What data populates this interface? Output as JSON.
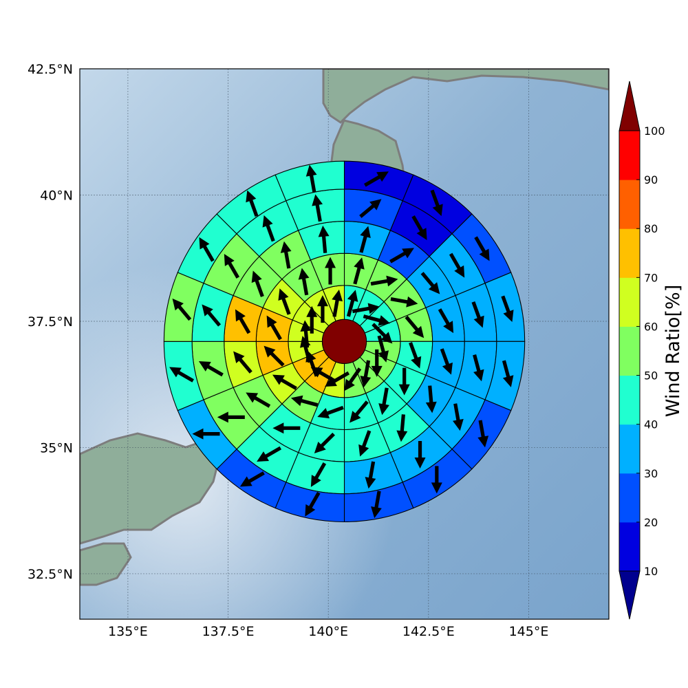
{
  "map": {
    "lon_range": [
      133.8,
      147.0
    ],
    "lat_range": [
      31.6,
      42.5
    ],
    "lon_ticks": [
      {
        "value": 135,
        "label": "135°E"
      },
      {
        "value": 137.5,
        "label": "137.5°E"
      },
      {
        "value": 140,
        "label": "140°E"
      },
      {
        "value": 142.5,
        "label": "142.5°E"
      },
      {
        "value": 145,
        "label": "145°E"
      }
    ],
    "lat_ticks": [
      {
        "value": 32.5,
        "label": "32.5°N"
      },
      {
        "value": 35,
        "label": "35°N"
      },
      {
        "value": 37.5,
        "label": "37.5°N"
      },
      {
        "value": 40,
        "label": "40°N"
      },
      {
        "value": 42.5,
        "label": "42.5°N"
      }
    ],
    "grid": true,
    "center": {
      "lon": 140.4,
      "lat": 37.1
    },
    "ring_radii_deg": [
      0.55,
      1.4,
      2.2,
      3.0,
      3.8,
      4.5
    ],
    "center_color": "#800000"
  },
  "colorbar": {
    "label": "Wind Ratio[%]",
    "ticks": [
      "10",
      "20",
      "30",
      "40",
      "50",
      "60",
      "70",
      "80",
      "90",
      "100"
    ],
    "colors": [
      "#0000e0",
      "#0050ff",
      "#00b0ff",
      "#20ffd0",
      "#80ff60",
      "#d0ff20",
      "#ffc000",
      "#ff6000",
      "#ff0000"
    ],
    "under_color": "#00008f",
    "over_color": "#800000"
  },
  "chart_data": {
    "type": "heatmap",
    "variable": "Wind Ratio[%]",
    "sectors_per_ring": 16,
    "rings": [
      {
        "ring": 1,
        "values": [
          45,
          45,
          45,
          45,
          55,
          55,
          55,
          55,
          65,
          75,
          75,
          65,
          65,
          65,
          65,
          65
        ]
      },
      {
        "ring": 2,
        "values": [
          55,
          55,
          55,
          55,
          45,
          45,
          45,
          45,
          45,
          55,
          65,
          75,
          75,
          65,
          55,
          55
        ]
      },
      {
        "ring": 3,
        "values": [
          35,
          25,
          35,
          35,
          35,
          35,
          45,
          45,
          45,
          45,
          55,
          65,
          75,
          55,
          55,
          45
        ]
      },
      {
        "ring": 4,
        "values": [
          25,
          15,
          35,
          35,
          35,
          35,
          35,
          35,
          45,
          45,
          55,
          55,
          45,
          55,
          45,
          45
        ]
      },
      {
        "ring": 5,
        "values": [
          15,
          15,
          25,
          35,
          35,
          25,
          25,
          25,
          25,
          25,
          35,
          45,
          55,
          45,
          45,
          45
        ]
      }
    ],
    "wind_dirs_deg": [
      [
        15,
        80,
        105,
        135,
        165,
        180,
        190,
        215,
        240,
        300,
        340,
        345,
        355,
        0,
        0,
        10
      ],
      [
        15,
        80,
        100,
        140,
        160,
        180,
        190,
        220,
        250,
        285,
        300,
        315,
        330,
        340,
        350,
        0
      ],
      [
        15,
        60,
        140,
        150,
        160,
        175,
        185,
        200,
        225,
        270,
        300,
        320,
        330,
        340,
        350,
        355
      ],
      [
        50,
        150,
        150,
        160,
        165,
        170,
        180,
        190,
        210,
        240,
        270,
        300,
        320,
        330,
        340,
        350
      ],
      [
        60,
        160,
        150,
        160,
        165,
        170,
        180,
        190,
        210,
        240,
        270,
        300,
        320,
        330,
        340,
        350
      ]
    ]
  }
}
